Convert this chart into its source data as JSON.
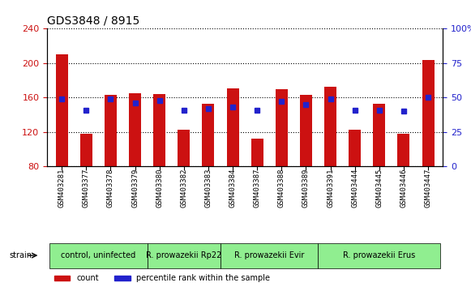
{
  "title": "GDS3848 / 8915",
  "samples": [
    "GSM403281",
    "GSM403377",
    "GSM403378",
    "GSM403379",
    "GSM403380",
    "GSM403382",
    "GSM403383",
    "GSM403384",
    "GSM403387",
    "GSM403388",
    "GSM403389",
    "GSM403391",
    "GSM403444",
    "GSM403445",
    "GSM403446",
    "GSM403447"
  ],
  "counts": [
    210,
    118,
    163,
    165,
    164,
    123,
    153,
    171,
    112,
    170,
    163,
    173,
    123,
    153,
    118,
    204
  ],
  "percentiles": [
    49,
    41,
    49,
    46,
    48,
    41,
    42,
    43,
    41,
    47,
    45,
    49,
    41,
    41,
    40,
    50
  ],
  "ymin": 80,
  "ymax": 240,
  "yticks": [
    80,
    120,
    160,
    200,
    240
  ],
  "y2min": 0,
  "y2max": 100,
  "y2ticks": [
    0,
    25,
    50,
    75,
    100
  ],
  "bar_color": "#cc1111",
  "marker_color": "#2222cc",
  "groups": [
    {
      "label": "control, uninfected",
      "start": 0,
      "end": 4,
      "color": "#90ee90"
    },
    {
      "label": "R. prowazekii Rp22",
      "start": 4,
      "end": 7,
      "color": "#90ee90"
    },
    {
      "label": "R. prowazekii Evir",
      "start": 7,
      "end": 11,
      "color": "#90ee90"
    },
    {
      "label": "R. prowazekii Erus",
      "start": 11,
      "end": 16,
      "color": "#90ee90"
    }
  ],
  "legend_items": [
    "count",
    "percentile rank within the sample"
  ],
  "xlabel_rotation": 90,
  "grid_style": "dotted",
  "background_color": "#ffffff",
  "plot_bg_color": "#ffffff",
  "tick_label_color_left": "#cc1111",
  "tick_label_color_right": "#2222cc",
  "strain_label": "strain"
}
